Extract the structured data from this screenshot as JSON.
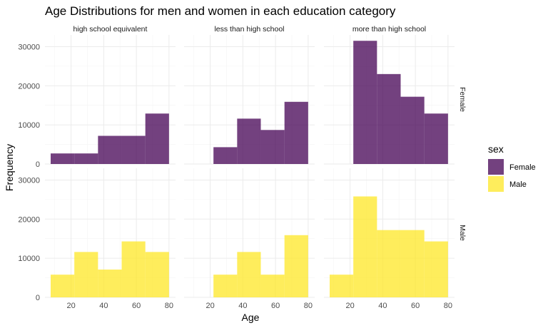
{
  "chart_data": {
    "type": "bar",
    "title": "Age Distributions for men and women in each education category",
    "xlabel": "Age",
    "ylabel": "Frequency",
    "xlim": [
      4,
      84
    ],
    "ylim": [
      0,
      33000
    ],
    "x_ticks": [
      "20",
      "40",
      "60",
      "80"
    ],
    "y_ticks": [
      "0",
      "10000",
      "20000",
      "30000"
    ],
    "columns": [
      "high school equivalent",
      "less than high school",
      "more than high school"
    ],
    "rows": [
      "Female",
      "Male"
    ],
    "legend": {
      "title": "sex",
      "position": "right",
      "items": [
        {
          "label": "Female",
          "color": "#440154"
        },
        {
          "label": "Male",
          "color": "#FDE725"
        }
      ]
    },
    "grid": true,
    "bin_edges": [
      7.5,
      22,
      36.5,
      51,
      65.5,
      80
    ],
    "panels": [
      {
        "column": "high school equivalent",
        "row": "Female",
        "values": [
          2700,
          2700,
          7200,
          7200,
          12900
        ]
      },
      {
        "column": "less than high school",
        "row": "Female",
        "values": [
          0,
          4300,
          11600,
          8700,
          15900
        ]
      },
      {
        "column": "more than high school",
        "row": "Female",
        "values": [
          0,
          31500,
          23000,
          17200,
          12900
        ]
      },
      {
        "column": "high school equivalent",
        "row": "Male",
        "values": [
          5800,
          11600,
          7100,
          14300,
          11600
        ]
      },
      {
        "column": "less than high school",
        "row": "Male",
        "values": [
          0,
          5800,
          11600,
          5800,
          15900
        ]
      },
      {
        "column": "more than high school",
        "row": "Male",
        "values": [
          5800,
          25800,
          17200,
          17200,
          14300
        ]
      }
    ]
  }
}
